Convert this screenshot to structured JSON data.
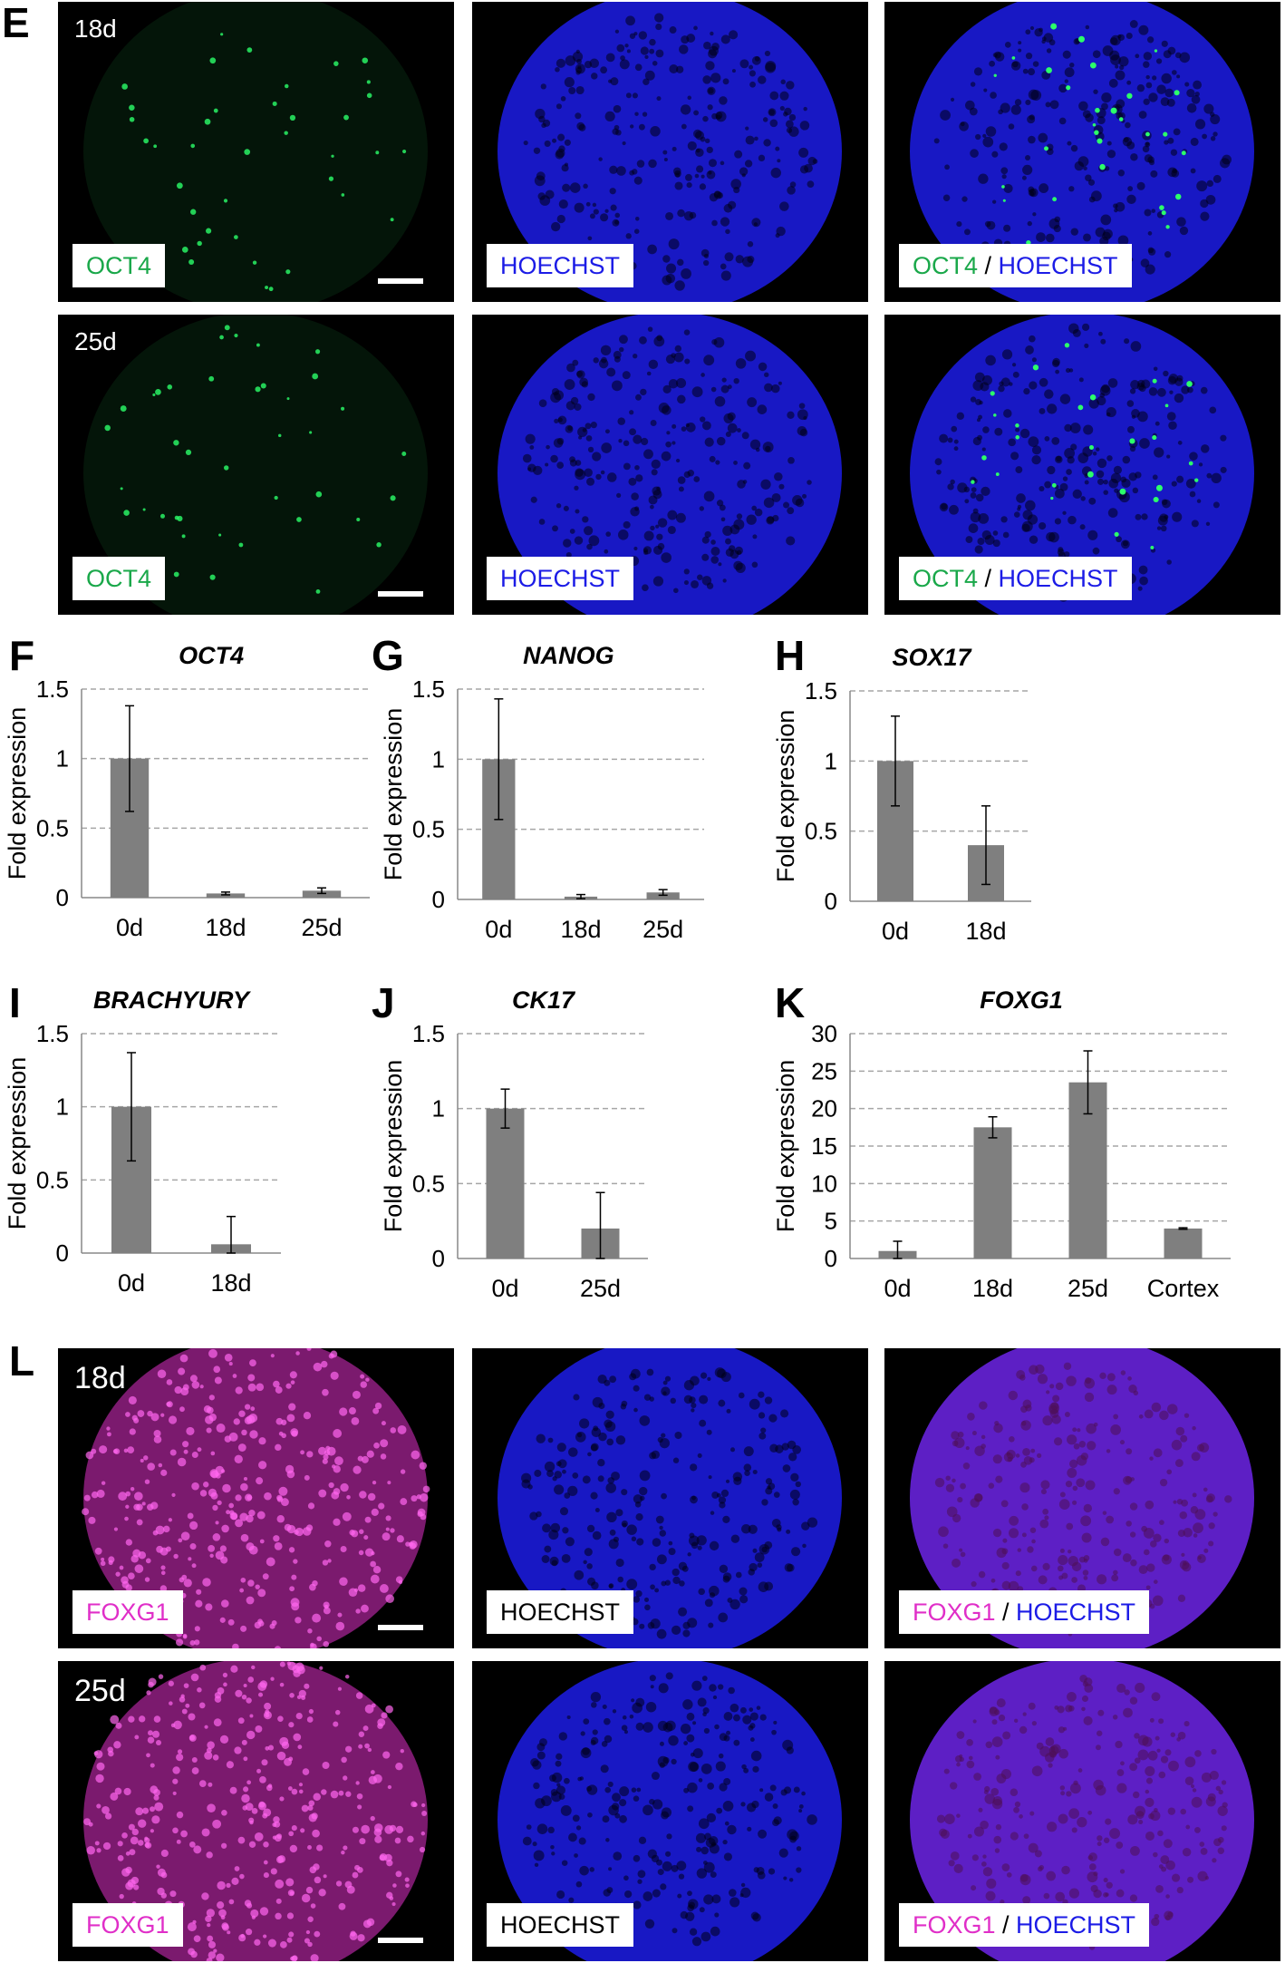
{
  "panel_letters": {
    "E": "E",
    "F": "F",
    "G": "G",
    "H": "H",
    "I": "I",
    "J": "J",
    "K": "K",
    "L": "L"
  },
  "micro_rows": [
    {
      "day": "18d",
      "labels": [
        [
          "OCT4"
        ],
        [
          "HOECHST"
        ],
        [
          "OCT4",
          " / ",
          "HOECHST"
        ]
      ],
      "stain": "OCT4"
    },
    {
      "day": "25d",
      "labels": [
        [
          "OCT4"
        ],
        [
          "HOECHST"
        ],
        [
          "OCT4",
          " / ",
          "HOECHST"
        ]
      ],
      "stain": "OCT4"
    },
    {
      "day": "18d",
      "labels": [
        [
          "FOXG1"
        ],
        [
          "HOECHST"
        ],
        [
          "FOXG1",
          " / ",
          "HOECHST"
        ]
      ],
      "stain": "FOXG1"
    },
    {
      "day": "25d",
      "labels": [
        [
          "FOXG1"
        ],
        [
          "HOECHST"
        ],
        [
          "FOXG1",
          " / ",
          "HOECHST"
        ]
      ],
      "stain": "FOXG1"
    }
  ],
  "colors": {
    "oct4": "#1aa84a",
    "hoechst": "#1c1ce6",
    "foxg1": "#e02fc8",
    "bar": "#7f7f7f",
    "grid": "#a6a6a6"
  },
  "chart_data": [
    {
      "panel": "F",
      "type": "bar",
      "title": "OCT4",
      "ylabel": "Fold expression",
      "categories": [
        "0d",
        "18d",
        "25d"
      ],
      "values": [
        1,
        0.03,
        0.05
      ],
      "errors": [
        0.38,
        0.01,
        0.02
      ],
      "ylim": [
        0,
        1.5
      ],
      "yticks": [
        0,
        0.5,
        1,
        1.5
      ],
      "ytick_labels": [
        "0",
        "0.5",
        "1",
        "1.5"
      ],
      "grid": true
    },
    {
      "panel": "G",
      "type": "bar",
      "title": "NANOG",
      "ylabel": "Fold expression",
      "categories": [
        "0d",
        "18d",
        "25d"
      ],
      "values": [
        1,
        0.02,
        0.05
      ],
      "errors": [
        0.43,
        0.015,
        0.02
      ],
      "ylim": [
        0,
        1.5
      ],
      "yticks": [
        0,
        0.5,
        1,
        1.5
      ],
      "ytick_labels": [
        "0",
        "0.5",
        "1",
        "1.5"
      ],
      "grid": true
    },
    {
      "panel": "H",
      "type": "bar",
      "title": "SOX17",
      "ylabel": "Fold expression",
      "categories": [
        "0d",
        "18d"
      ],
      "values": [
        1,
        0.4
      ],
      "errors": [
        0.32,
        0.28
      ],
      "ylim": [
        0,
        1.5
      ],
      "yticks": [
        0,
        0.5,
        1,
        1.5
      ],
      "ytick_labels": [
        "0",
        "0.5",
        "1",
        "1.5"
      ],
      "grid": true
    },
    {
      "panel": "I",
      "type": "bar",
      "title": "BRACHYURY",
      "ylabel": "Fold expression",
      "categories": [
        "0d",
        "18d"
      ],
      "values": [
        1,
        0.06
      ],
      "errors": [
        0.37,
        0.19
      ],
      "ylim": [
        0,
        1.5
      ],
      "yticks": [
        0,
        0.5,
        1,
        1.5
      ],
      "ytick_labels": [
        "0",
        "0.5",
        "1",
        "1.5"
      ],
      "grid": true
    },
    {
      "panel": "J",
      "type": "bar",
      "title": "CK17",
      "ylabel": "Fold expression",
      "categories": [
        "0d",
        "25d"
      ],
      "values": [
        1,
        0.2
      ],
      "errors": [
        0.13,
        0.24
      ],
      "ylim": [
        0,
        1.5
      ],
      "yticks": [
        0,
        0.5,
        1,
        1.5
      ],
      "ytick_labels": [
        "0",
        "0.5",
        "1",
        "1.5"
      ],
      "grid": true
    },
    {
      "panel": "K",
      "type": "bar",
      "title": "FOXG1",
      "ylabel": "Fold expression",
      "categories": [
        "0d",
        "18d",
        "25d",
        "Cortex"
      ],
      "values": [
        1,
        17.5,
        23.5,
        4
      ],
      "errors": [
        1.3,
        1.4,
        4.2,
        0.1
      ],
      "ylim": [
        0,
        30
      ],
      "yticks": [
        0,
        5,
        10,
        15,
        20,
        25,
        30
      ],
      "ytick_labels": [
        "0",
        "5",
        "10",
        "15",
        "20",
        "25",
        "30"
      ],
      "grid": true
    }
  ]
}
